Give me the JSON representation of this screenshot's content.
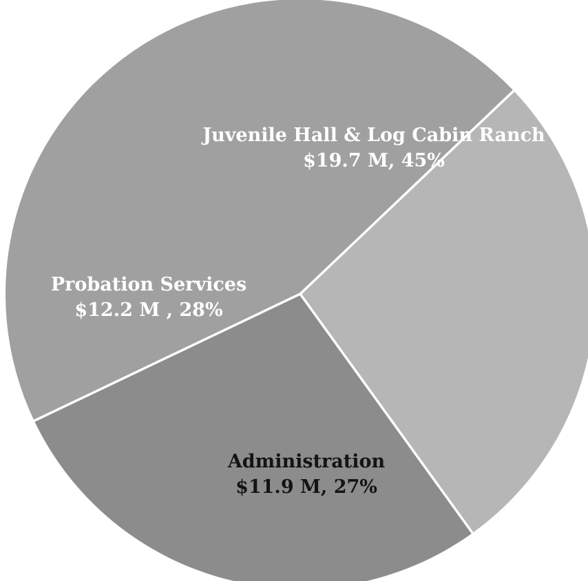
{
  "chart_data": {
    "type": "pie",
    "slices": [
      {
        "name": "Juvenile Hall & Log Cabin Ranch",
        "value": 19.7,
        "percent": 45,
        "label_value": "$19.7 M, 45%",
        "color": "#a0a0a0",
        "text_color": "#ffffff"
      },
      {
        "name": "Administration",
        "value": 11.9,
        "percent": 27,
        "label_value": "$11.9 M, 27%",
        "color": "#b6b6b6",
        "text_color": "#141414"
      },
      {
        "name": "Probation Services",
        "value": 12.2,
        "percent": 28,
        "label_value": "$12.2 M , 28%",
        "color": "#8c8c8c",
        "text_color": "#ffffff"
      }
    ],
    "separator_color": "#ffffff"
  }
}
